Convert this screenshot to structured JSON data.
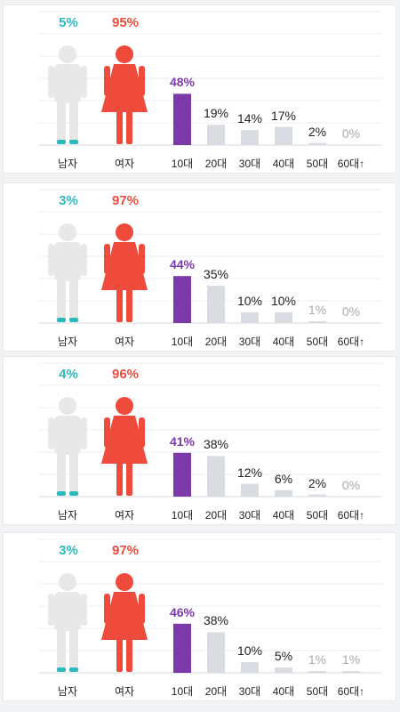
{
  "colors": {
    "male": "#2bbbbf",
    "female": "#ef4b3c",
    "highlight": "#7c3aa8",
    "bar": "#d9dde2",
    "icon_gray": "#e8e8e8"
  },
  "chart_data": [
    {
      "type": "bar",
      "gender": {
        "male_label": "남자",
        "female_label": "여자",
        "male_pct": "5%",
        "female_pct": "95%"
      },
      "categories": [
        "10대",
        "20대",
        "30대",
        "40대",
        "50대",
        "60대↑"
      ],
      "values": [
        48,
        19,
        14,
        17,
        2,
        0
      ],
      "value_labels": [
        "48%",
        "19%",
        "14%",
        "17%",
        "2%",
        "0%"
      ]
    },
    {
      "type": "bar",
      "gender": {
        "male_label": "남자",
        "female_label": "여자",
        "male_pct": "3%",
        "female_pct": "97%"
      },
      "categories": [
        "10대",
        "20대",
        "30대",
        "40대",
        "50대",
        "60대↑"
      ],
      "values": [
        44,
        35,
        10,
        10,
        1,
        0
      ],
      "value_labels": [
        "44%",
        "35%",
        "10%",
        "10%",
        "1%",
        "0%"
      ]
    },
    {
      "type": "bar",
      "gender": {
        "male_label": "남자",
        "female_label": "여자",
        "male_pct": "4%",
        "female_pct": "96%"
      },
      "categories": [
        "10대",
        "20대",
        "30대",
        "40대",
        "50대",
        "60대↑"
      ],
      "values": [
        41,
        38,
        12,
        6,
        2,
        0
      ],
      "value_labels": [
        "41%",
        "38%",
        "12%",
        "6%",
        "2%",
        "0%"
      ]
    },
    {
      "type": "bar",
      "gender": {
        "male_label": "남자",
        "female_label": "여자",
        "male_pct": "3%",
        "female_pct": "97%"
      },
      "categories": [
        "10대",
        "20대",
        "30대",
        "40대",
        "50대",
        "60대↑"
      ],
      "values": [
        46,
        38,
        10,
        5,
        1,
        1
      ],
      "value_labels": [
        "46%",
        "38%",
        "10%",
        "5%",
        "1%",
        "1%"
      ]
    }
  ]
}
